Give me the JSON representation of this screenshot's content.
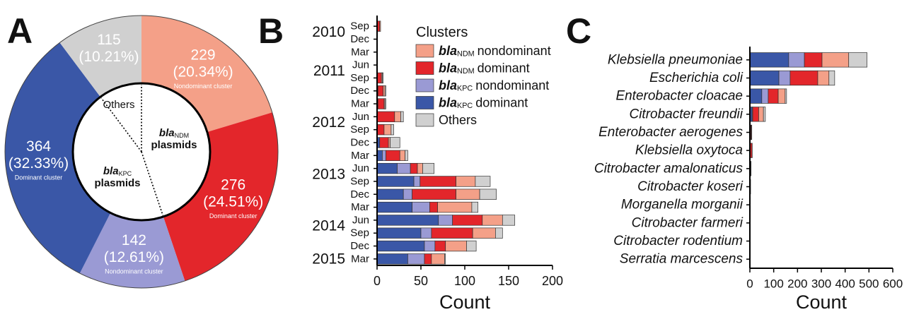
{
  "chart_data": [
    {
      "type": "pie",
      "panel": "A",
      "values": [
        229,
        276,
        142,
        364,
        115
      ],
      "percent_labels": [
        "(20.34%)",
        "(24.51%)",
        "(12.61%)",
        "(32.33%)",
        "(10.21%)"
      ],
      "segment_notes": [
        "Nondominant cluster",
        "Dominant cluster",
        "Nondominant cluster",
        "Dominant cluster",
        null
      ],
      "colors": [
        "#f4a088",
        "#e3262b",
        "#9a9ad4",
        "#3a57a7",
        "#d0d0d0"
      ],
      "inner_labels": [
        {
          "main": "bla",
          "sub": "NDM",
          "rest": "plasmids"
        },
        {
          "main": "bla",
          "sub": "KPC",
          "rest": "plasmids"
        },
        {
          "main": "Others"
        }
      ]
    },
    {
      "type": "bar",
      "panel": "B",
      "orientation": "horizontal",
      "stacked": true,
      "categories": [
        "Sep",
        "Dec",
        "Mar",
        "Jun",
        "Sep",
        "Dec",
        "Mar",
        "Jun",
        "Sep",
        "Dec",
        "Mar",
        "Jun",
        "Sep",
        "Dec",
        "Mar",
        "Jun",
        "Sep",
        "Dec",
        "Mar"
      ],
      "year_labels": [
        "2010",
        null,
        null,
        "2011",
        null,
        null,
        null,
        "2012",
        null,
        null,
        null,
        "2013",
        null,
        null,
        null,
        "2014",
        null,
        null,
        "2015"
      ],
      "legend_title": "Clusters",
      "series": [
        {
          "name": {
            "main": "bla",
            "sub": "NDM",
            "rest": "nondominant"
          },
          "color": "#f4a088",
          "values": [
            1,
            0,
            0,
            0,
            1,
            2,
            1,
            7,
            8,
            2,
            6,
            6,
            22,
            27,
            39,
            23,
            26,
            24,
            15
          ]
        },
        {
          "name": {
            "main": "bla",
            "sub": "NDM",
            "rest": "dominant"
          },
          "color": "#e3262b",
          "values": [
            3,
            0,
            0,
            0,
            5,
            6,
            7,
            20,
            8,
            10,
            16,
            8,
            41,
            50,
            9,
            34,
            47,
            12,
            8
          ]
        },
        {
          "name": {
            "main": "bla",
            "sub": "KPC",
            "rest": "nondominant"
          },
          "color": "#9a9ad4",
          "values": [
            0,
            0,
            0,
            0,
            0,
            0,
            0,
            0,
            0,
            0,
            4,
            15,
            7,
            10,
            20,
            16,
            12,
            12,
            19
          ]
        },
        {
          "name": {
            "main": "bla",
            "sub": "KPC",
            "rest": "dominant"
          },
          "color": "#3a57a7",
          "values": [
            0,
            0,
            0,
            0,
            0,
            1,
            1,
            0,
            0,
            3,
            6,
            23,
            42,
            30,
            40,
            70,
            50,
            54,
            35
          ]
        },
        {
          "name": {
            "main": "Others"
          },
          "color": "#d0d0d0",
          "values": [
            0,
            0,
            0,
            0,
            1,
            1,
            1,
            3,
            3,
            11,
            3,
            13,
            17,
            19,
            7,
            14,
            8,
            11,
            1
          ]
        }
      ],
      "xlim": [
        0,
        200
      ],
      "xticks": [
        0,
        50,
        100,
        150,
        200
      ],
      "xlabel": "Count"
    },
    {
      "type": "bar",
      "panel": "C",
      "orientation": "horizontal",
      "stacked": true,
      "categories": [
        "Klebsiella pneumoniae",
        "Escherichia coli",
        "Enterobacter cloacae",
        "Citrobacter freundii",
        "Enterobacter aerogenes",
        "Klebsiella oxytoca",
        "Citrobacter amalonaticus",
        "Citrobacter koseri",
        "Morganella morganii",
        "Citrobacter farmeri",
        "Citrobacter rodentium",
        "Serratia marcescens"
      ],
      "series": [
        {
          "color": "#f4a088",
          "values": [
            112,
            47,
            29,
            20,
            1,
            1,
            0,
            0,
            0,
            0,
            0,
            0
          ]
        },
        {
          "color": "#e3262b",
          "values": [
            74,
            116,
            42,
            25,
            3,
            8,
            2,
            1,
            2,
            1,
            0,
            1
          ]
        },
        {
          "color": "#9a9ad4",
          "values": [
            66,
            47,
            27,
            3,
            0,
            0,
            0,
            0,
            0,
            0,
            0,
            0
          ]
        },
        {
          "color": "#3a57a7",
          "values": [
            163,
            122,
            50,
            9,
            3,
            1,
            2,
            1,
            0,
            0,
            1,
            0
          ]
        },
        {
          "color": "#d0d0d0",
          "values": [
            77,
            24,
            6,
            8,
            1,
            0,
            1,
            1,
            0,
            0,
            0,
            0
          ]
        }
      ],
      "xlim": [
        0,
        600
      ],
      "xticks": [
        0,
        100,
        200,
        300,
        400,
        500,
        600
      ],
      "xlabel": "Count"
    }
  ]
}
